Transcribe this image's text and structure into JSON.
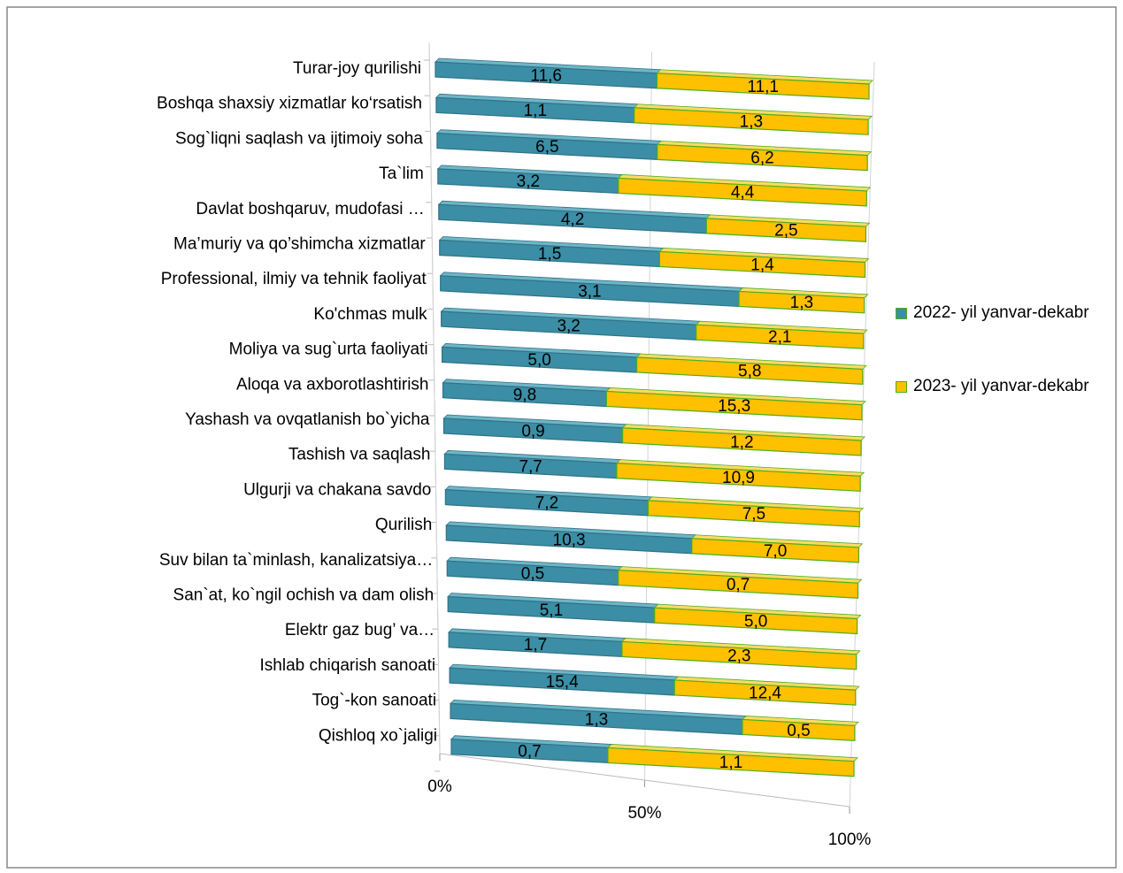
{
  "chart_data": {
    "type": "stacked_bar_100",
    "categories": [
      "Turar-joy qurilishi",
      "Boshqa shaxsiy xizmatlar ko‘rsatish",
      "Sog`liqni saqlash va ijtimoiy soha",
      "Ta`lim",
      "Davlat boshqaruv,  mudofasi …",
      "Ma’muriy va qo’shimcha xizmatlar",
      "Professional, ilmiy va tehnik faoliyat",
      "Ko'chmas mulk",
      "Moliya va sug`urta faoliyati",
      "Aloqa va axborotlashtirish",
      "Yashash va ovqatlanish bo`yicha",
      "Tashish va saqlash",
      "Ulgurji va chakana savdo",
      "Qurilish",
      "Suv bilan ta`minlash, kanalizatsiya…",
      "San`at, ko`ngil ochish va dam olish",
      "Elektr gaz bug’ va…",
      "Ishlab chiqarish sanoati",
      "Tog`-kon sanoati",
      "Qishloq xo`jaligi"
    ],
    "series": [
      {
        "name": "2022- yil yanvar-dekabr",
        "color": "#3b8ea5",
        "values": [
          11.6,
          1.1,
          6.5,
          3.2,
          4.2,
          1.5,
          3.1,
          3.2,
          5.0,
          9.8,
          0.9,
          7.7,
          7.2,
          10.3,
          0.5,
          5.1,
          1.7,
          15.4,
          1.3,
          0.7
        ],
        "value_labels": [
          "11,6",
          "1,1",
          "6,5",
          "3,2",
          "4,2",
          "1,5",
          "3,1",
          "3,2",
          "5,0",
          "9,8",
          "0,9",
          "7,7",
          "7,2",
          "10,3",
          "0,5",
          "5,1",
          "1,7",
          "15,4",
          "1,3",
          "0,7"
        ]
      },
      {
        "name": "2023- yil yanvar-dekabr",
        "color": "#ffc000",
        "values": [
          11.1,
          1.3,
          6.2,
          4.4,
          2.5,
          1.4,
          1.3,
          2.1,
          5.8,
          15.3,
          1.2,
          10.9,
          7.5,
          7.0,
          0.7,
          5.0,
          2.3,
          12.4,
          0.5,
          1.1
        ],
        "value_labels": [
          "11,1",
          "1,3",
          "6,2",
          "4,4",
          "2,5",
          "1,4",
          "1,3",
          "2,1",
          "5,8",
          "15,3",
          "1,2",
          "10,9",
          "7,5",
          "7,0",
          "0,7",
          "5,0",
          "2,3",
          "12,4",
          "0,5",
          "1,1"
        ]
      }
    ],
    "xlim": [
      0,
      100
    ],
    "xticks": [
      {
        "value": 0,
        "label": "0%"
      },
      {
        "value": 50,
        "label": "50%"
      },
      {
        "value": 100,
        "label": "100%"
      }
    ],
    "legend": "right"
  }
}
